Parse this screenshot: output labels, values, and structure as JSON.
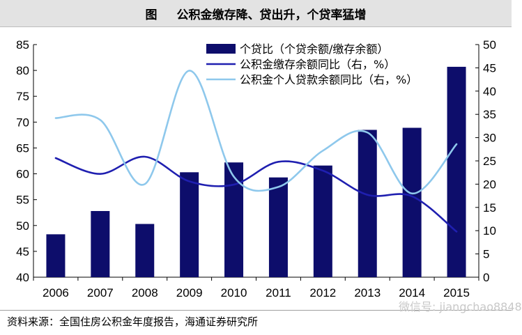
{
  "header": {
    "figure_label": "图",
    "title": "公积金缴存降、贷出升，个贷率猛增"
  },
  "chart_data": {
    "type": "bar+line",
    "title": "公积金缴存降、贷出升，个贷率猛增",
    "categories": [
      "2006",
      "2007",
      "2008",
      "2009",
      "2010",
      "2011",
      "2012",
      "2013",
      "2014",
      "2015"
    ],
    "left_axis": {
      "min": 40,
      "max": 85,
      "ticks": [
        40,
        45,
        50,
        55,
        60,
        65,
        70,
        75,
        80,
        85
      ]
    },
    "right_axis": {
      "min": 0,
      "max": 50,
      "ticks": [
        0,
        5,
        10,
        15,
        20,
        25,
        30,
        35,
        40,
        45,
        50
      ]
    },
    "series": [
      {
        "name": "个贷比（个贷余额/缴存余额）",
        "type": "bar",
        "axis": "left",
        "color": "#0d0d6b",
        "values": [
          48.3,
          52.8,
          50.3,
          60.3,
          62.2,
          59.3,
          61.6,
          68.5,
          68.9,
          80.7
        ]
      },
      {
        "name": "公积金缴存余额同比（右，%）",
        "type": "line",
        "axis": "right",
        "color": "#1f1fb0",
        "values": [
          25.6,
          22.2,
          25.9,
          20.6,
          19.9,
          24.8,
          22.9,
          17.7,
          17.4,
          9.8
        ]
      },
      {
        "name": "公积金个人贷款余额同比（右，%）",
        "type": "line",
        "axis": "right",
        "color": "#8ec8ec",
        "values": [
          34.2,
          33.8,
          20.0,
          44.4,
          21.6,
          19.4,
          27.2,
          31.1,
          18.0,
          28.6
        ]
      }
    ]
  },
  "footer": {
    "source": "资料来源：全国住房公积金年度报告，海通证券研究所",
    "watermark": "微信号: jiangchao8848"
  }
}
